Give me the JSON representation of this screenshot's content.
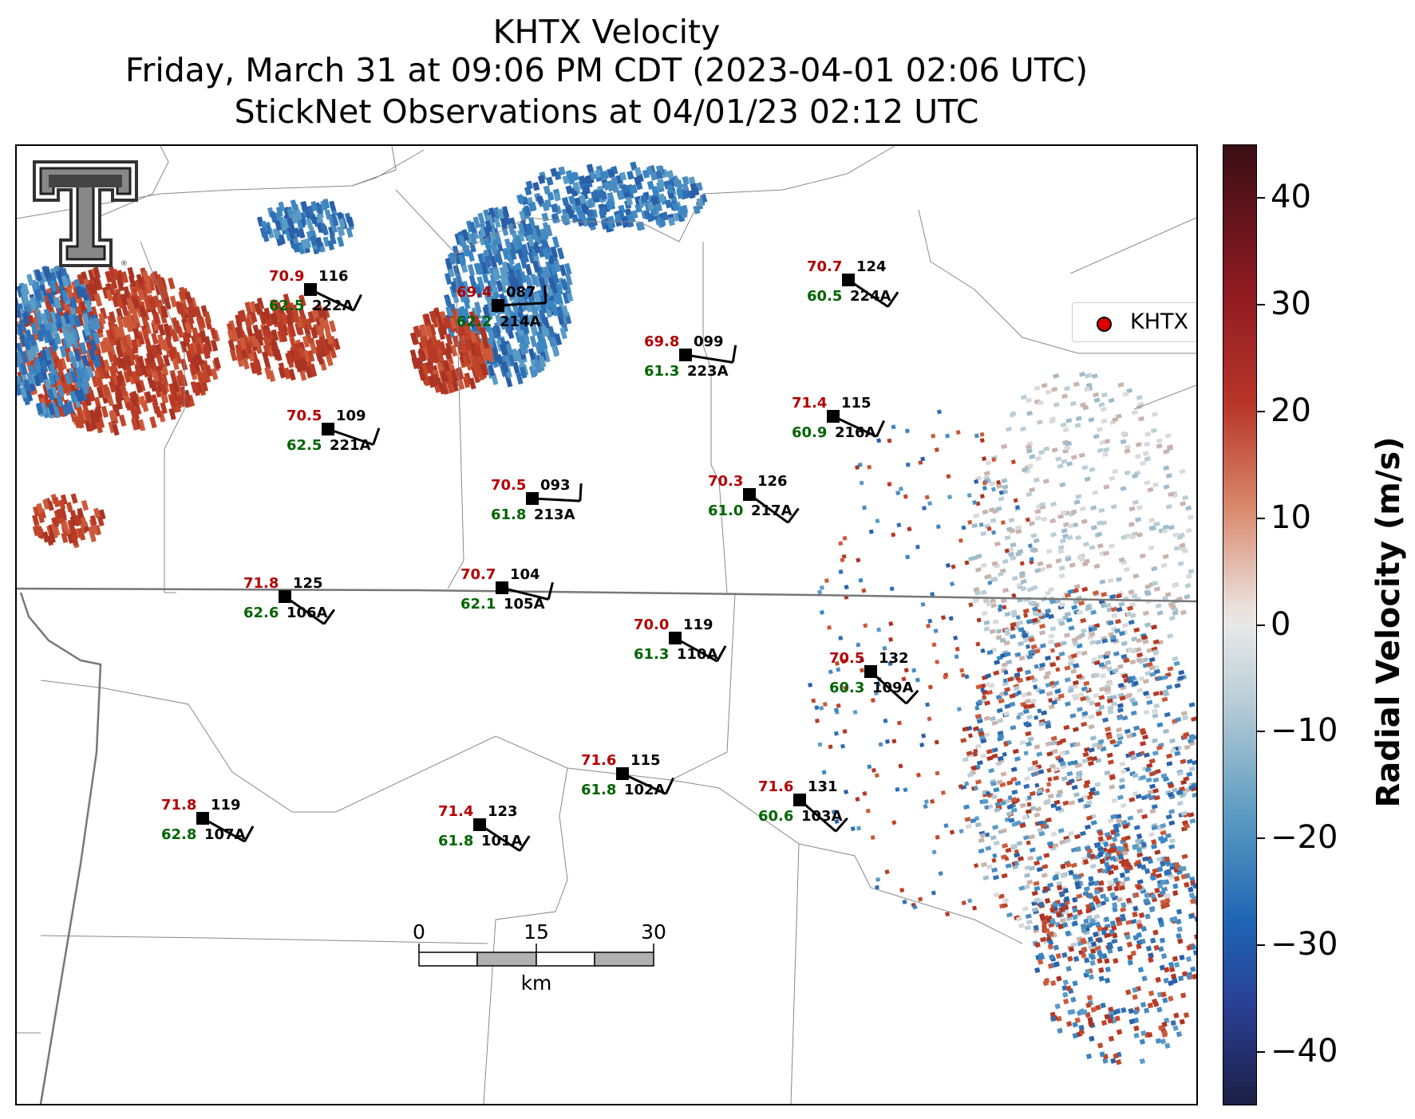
{
  "title": {
    "line1": "KHTX Velocity",
    "line2": "Friday, March 31 at 09:06 PM CDT (2023-04-01 02:06 UTC)",
    "line3": "StickNet Observations at 04/01/23 02:12 UTC"
  },
  "legend": {
    "label": "KHTX",
    "marker_color": "#e00000"
  },
  "colorbar": {
    "label": "Radial Velocity (m/s)",
    "ticks": [
      "40",
      "30",
      "20",
      "10",
      "0",
      "−10",
      "−20",
      "−30",
      "−40"
    ],
    "tick_values": [
      40,
      30,
      20,
      10,
      0,
      -10,
      -20,
      -30,
      -40
    ],
    "range": [
      -45,
      45
    ]
  },
  "scalebar": {
    "ticks": [
      "0",
      "15",
      "30"
    ],
    "unit": "km"
  },
  "colors": {
    "temperature": "#b30000",
    "dewpoint": "#006400",
    "station": "#000000"
  },
  "stations": [
    {
      "id": "222A",
      "temp": "70.9",
      "dew": "62.5",
      "dir": "116"
    },
    {
      "id": "214A",
      "temp": "69.4",
      "dew": "62.2",
      "dir": "087"
    },
    {
      "id": "224A",
      "temp": "70.7",
      "dew": "60.5",
      "dir": "124"
    },
    {
      "id": "223A",
      "temp": "69.8",
      "dew": "61.3",
      "dir": "099"
    },
    {
      "id": "221A",
      "temp": "70.5",
      "dew": "62.5",
      "dir": "109"
    },
    {
      "id": "216A",
      "temp": "71.4",
      "dew": "60.9",
      "dir": "115"
    },
    {
      "id": "213A",
      "temp": "70.5",
      "dew": "61.8",
      "dir": "093"
    },
    {
      "id": "217A",
      "temp": "70.3",
      "dew": "61.0",
      "dir": "126"
    },
    {
      "id": "106A",
      "temp": "71.8",
      "dew": "62.6",
      "dir": "125"
    },
    {
      "id": "105A",
      "temp": "70.7",
      "dew": "62.1",
      "dir": "104"
    },
    {
      "id": "110A",
      "temp": "70.0",
      "dew": "61.3",
      "dir": "119"
    },
    {
      "id": "109A",
      "temp": "70.5",
      "dew": "60.3",
      "dir": "132"
    },
    {
      "id": "102A",
      "temp": "71.6",
      "dew": "61.8",
      "dir": "115"
    },
    {
      "id": "103A",
      "temp": "71.6",
      "dew": "60.6",
      "dir": "131"
    },
    {
      "id": "107A",
      "temp": "71.8",
      "dew": "62.8",
      "dir": "119"
    },
    {
      "id": "101A",
      "temp": "71.4",
      "dew": "61.8",
      "dir": "123"
    }
  ]
}
